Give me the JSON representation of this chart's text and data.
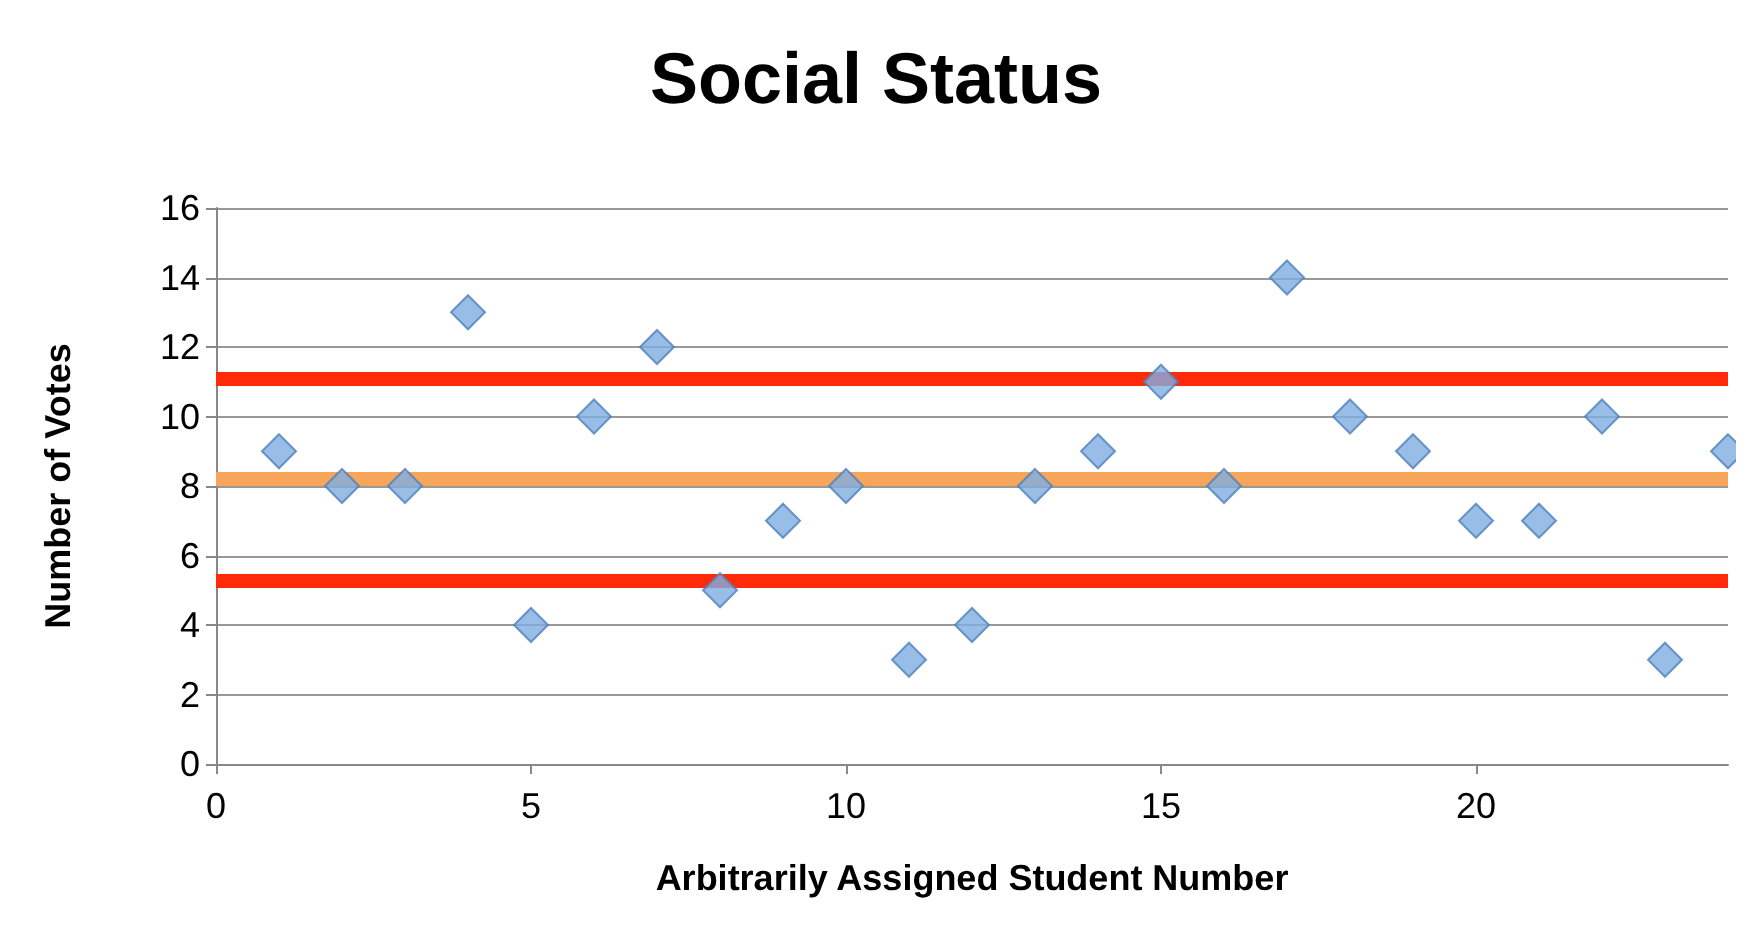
{
  "chart_data": {
    "type": "scatter",
    "title": "Social Status",
    "xlabel": "Arbitrarily Assigned Student Number",
    "ylabel": "Number of Votes",
    "x": [
      1,
      2,
      3,
      4,
      5,
      6,
      7,
      8,
      9,
      10,
      11,
      12,
      13,
      14,
      15,
      16,
      17,
      18,
      19,
      20,
      21,
      22,
      23,
      24
    ],
    "series": [
      {
        "color": "#7eaee2",
        "values": [
          9,
          8,
          8,
          13,
          4,
          10,
          12,
          5,
          7,
          8,
          3,
          4,
          8,
          9,
          11,
          8,
          14,
          10,
          9,
          7,
          7,
          10,
          3,
          9
        ]
      }
    ],
    "xlim": [
      0,
      24
    ],
    "xticks": [
      0,
      5,
      10,
      15,
      20
    ],
    "ylim": [
      0,
      16
    ],
    "yticks": [
      0,
      2,
      4,
      6,
      8,
      10,
      12,
      14,
      16
    ],
    "grid": "y",
    "marker": "diamond",
    "ref_lines": [
      {
        "axis": "y",
        "value": 11.1,
        "color": "#ff2a0a"
      },
      {
        "axis": "y",
        "value": 8.2,
        "color": "#f7a55a"
      },
      {
        "axis": "y",
        "value": 5.3,
        "color": "#ff2a0a"
      }
    ]
  }
}
